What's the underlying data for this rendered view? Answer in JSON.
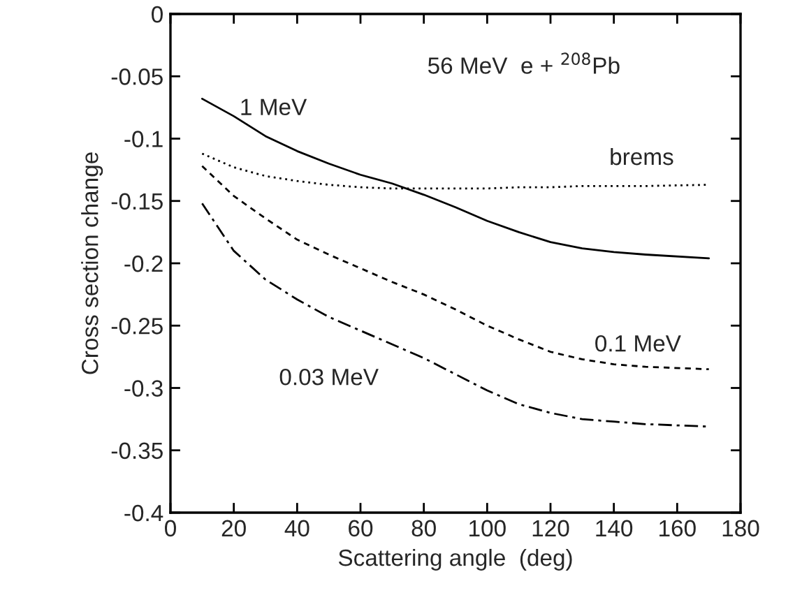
{
  "chart_data": {
    "type": "line",
    "xlabel": "Scattering angle  (deg)",
    "ylabel": "Cross section change",
    "annotations": [
      "56 MeV  e + $^{208}$Pb"
    ],
    "x": [
      10,
      20,
      30,
      40,
      50,
      60,
      70,
      80,
      90,
      100,
      110,
      120,
      130,
      140,
      150,
      170
    ],
    "series": [
      {
        "name": "1 MeV",
        "color": "#000000",
        "line_style": "solid",
        "values": [
          -0.068,
          -0.082,
          -0.098,
          -0.11,
          -0.12,
          -0.129,
          -0.136,
          -0.145,
          -0.155,
          -0.166,
          -0.175,
          -0.183,
          -0.188,
          -0.191,
          -0.193,
          -0.196
        ]
      },
      {
        "name": "brems",
        "color": "#000000",
        "line_style": "dotted",
        "values": [
          -0.112,
          -0.123,
          -0.13,
          -0.134,
          -0.137,
          -0.139,
          -0.14,
          -0.14,
          -0.14,
          -0.14,
          -0.139,
          -0.139,
          -0.138,
          -0.138,
          -0.138,
          -0.137
        ]
      },
      {
        "name": "0.1 MeV",
        "color": "#000000",
        "line_style": "dashed",
        "values": [
          -0.122,
          -0.146,
          -0.164,
          -0.181,
          -0.193,
          -0.204,
          -0.215,
          -0.225,
          -0.237,
          -0.25,
          -0.261,
          -0.271,
          -0.277,
          -0.281,
          -0.283,
          -0.285
        ]
      },
      {
        "name": "0.03 MeV",
        "color": "#000000",
        "line_style": "dashdot",
        "values": [
          -0.152,
          -0.19,
          -0.213,
          -0.229,
          -0.243,
          -0.254,
          -0.265,
          -0.276,
          -0.289,
          -0.302,
          -0.313,
          -0.32,
          -0.325,
          -0.327,
          -0.329,
          -0.331
        ]
      }
    ],
    "xlim": [
      0,
      180
    ],
    "xticks": [
      0,
      20,
      40,
      60,
      80,
      100,
      120,
      140,
      160,
      180
    ],
    "ylim": [
      -0.4,
      0
    ],
    "yticks": [
      {
        "value": -0.4,
        "label": "-0.4"
      },
      {
        "value": -0.35,
        "label": "-0.35"
      },
      {
        "value": -0.3,
        "label": "-0.3"
      },
      {
        "value": -0.25,
        "label": "-0.25"
      },
      {
        "value": -0.2,
        "label": "-0.2"
      },
      {
        "value": -0.15,
        "label": "-0.15"
      },
      {
        "value": -0.1,
        "label": "-0.1"
      },
      {
        "value": -0.05,
        "label": "-0.05"
      },
      {
        "value": 0,
        "label": "0"
      }
    ],
    "grid": false,
    "marker": "none"
  }
}
